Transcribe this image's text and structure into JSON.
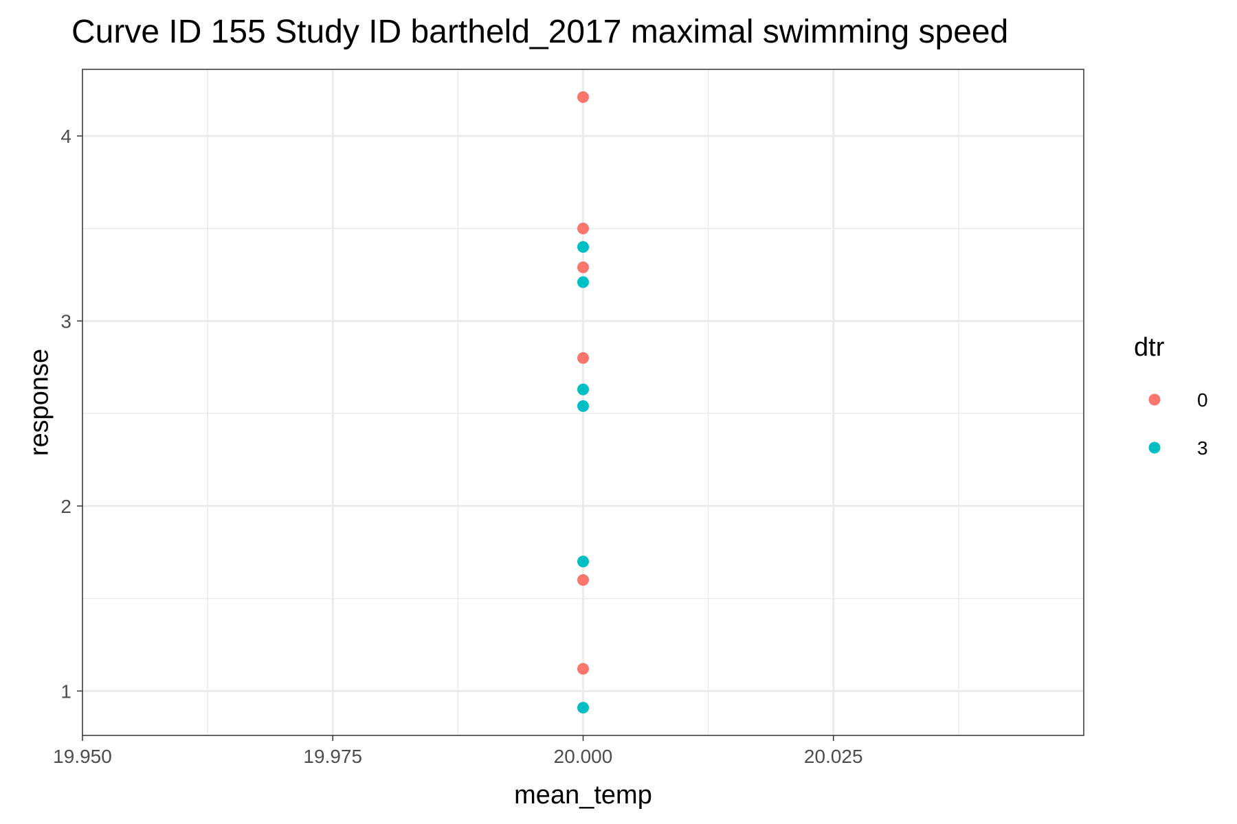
{
  "chart_data": {
    "type": "scatter",
    "title": "Curve ID 155 Study ID bartheld_2017 maximal swimming speed",
    "xlabel": "mean_temp",
    "ylabel": "response",
    "xlim": [
      19.95,
      20.05
    ],
    "ylim": [
      0.76,
      4.36
    ],
    "x_ticks": [
      19.95,
      19.975,
      20.0,
      20.025
    ],
    "x_tick_labels": [
      "19.950",
      "19.975",
      "20.000",
      "20.025"
    ],
    "y_ticks": [
      1,
      2,
      3,
      4
    ],
    "y_tick_labels": [
      "1",
      "2",
      "3",
      "4"
    ],
    "grid": true,
    "legend": {
      "title": "dtr",
      "placement": "right",
      "entries": [
        {
          "label": "0",
          "color": "#F8766D"
        },
        {
          "label": "3",
          "color": "#00BFC4"
        }
      ]
    },
    "series": [
      {
        "name": "0",
        "color": "#F8766D",
        "points": [
          [
            20.0,
            4.21
          ],
          [
            20.0,
            3.5
          ],
          [
            20.0,
            3.29
          ],
          [
            20.0,
            2.8
          ],
          [
            20.0,
            1.6
          ],
          [
            20.0,
            1.12
          ]
        ]
      },
      {
        "name": "3",
        "color": "#00BFC4",
        "points": [
          [
            20.0,
            3.4
          ],
          [
            20.0,
            3.21
          ],
          [
            20.0,
            2.63
          ],
          [
            20.0,
            2.54
          ],
          [
            20.0,
            1.7
          ],
          [
            20.0,
            0.91
          ]
        ]
      }
    ]
  }
}
